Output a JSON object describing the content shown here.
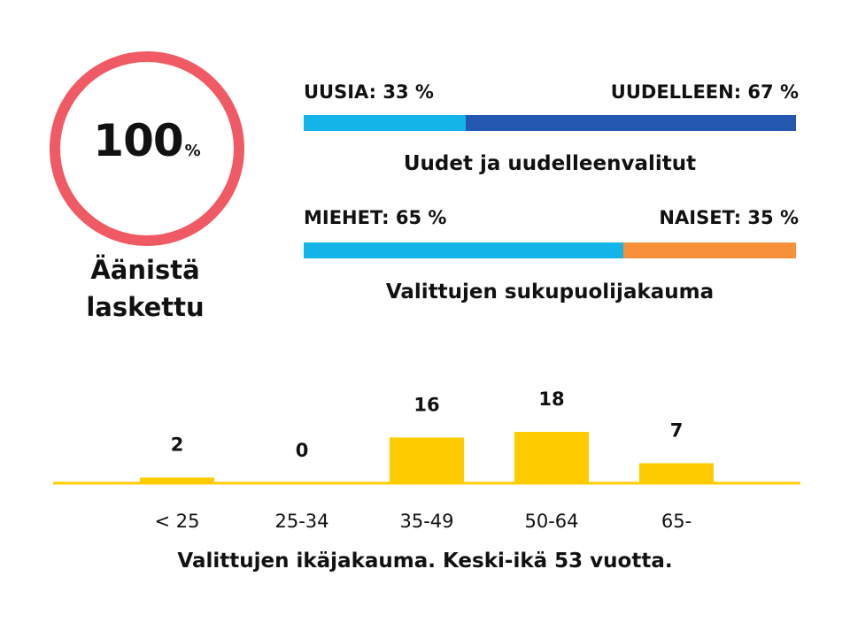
{
  "counted": {
    "value": "100",
    "unit": "%",
    "label_line1": "Äänistä",
    "label_line2": "laskettu",
    "color": "#f05a64"
  },
  "new_vs_reelected": {
    "left_label": "UUSIA: 33 %",
    "right_label": "UUDELLEEN: 67 %",
    "left_share": 33,
    "right_share": 67,
    "left_color": "#14b4e8",
    "right_color": "#2457b0",
    "title": "Uudet ja uudelleenvalitut"
  },
  "gender": {
    "left_label": "MIEHET: 65 %",
    "right_label": "NAISET: 35 %",
    "left_share": 65,
    "right_share": 35,
    "left_color": "#14b4e8",
    "right_color": "#f7903a",
    "title": "Valittujen sukupuolijakauma"
  },
  "chart_data": {
    "type": "bar",
    "categories": [
      "< 25",
      "25-34",
      "35-49",
      "50-64",
      "65-"
    ],
    "values": [
      2,
      0,
      16,
      18,
      7
    ],
    "title": "Valittujen ikäjakauma. Keski-ikä 53 vuotta.",
    "xlabel": "",
    "ylabel": "",
    "ylim": [
      0,
      18
    ],
    "grid": false,
    "bar_color": "#ffcc00"
  }
}
